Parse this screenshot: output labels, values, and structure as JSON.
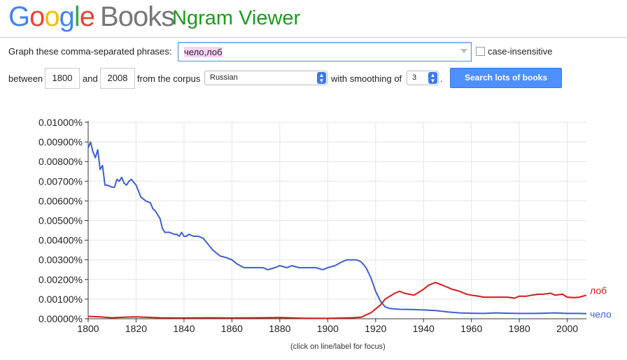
{
  "header": {
    "logo_letters": [
      "G",
      "o",
      "o",
      "g",
      "l",
      "e"
    ],
    "logo_books": "Books",
    "title": "Ngram Viewer"
  },
  "form": {
    "phrases_label": "Graph these comma-separated phrases:",
    "phrases_value": "чело,лоб",
    "case_label": "case-insensitive",
    "between_label": "between",
    "start_year": "1800",
    "and_label": "and",
    "end_year": "2008",
    "corpus_label": "from the corpus",
    "corpus_value": "Russian",
    "smoothing_label": "with smoothing of",
    "smoothing_value": "3",
    "period": ".",
    "search_button": "Search lots of books"
  },
  "footnote": "(click on line/label for focus)",
  "colors": {
    "chelo": "#3b5fd6",
    "lob": "#d61a1a"
  },
  "chart_data": {
    "type": "line",
    "x_ticks": [
      1800,
      1820,
      1840,
      1860,
      1880,
      1900,
      1920,
      1940,
      1960,
      1980,
      2000
    ],
    "y_ticks": [
      "0.00000%",
      "0.00100%",
      "0.00200%",
      "0.00300%",
      "0.00400%",
      "0.00500%",
      "0.00600%",
      "0.00700%",
      "0.00800%",
      "0.00900%",
      "0.01000%"
    ],
    "xlim": [
      1800,
      2008
    ],
    "ylim": [
      0,
      0.01
    ],
    "grid": true,
    "series": [
      {
        "name": "чело",
        "x": [
          1800,
          1801,
          1802,
          1803,
          1804,
          1805,
          1806,
          1807,
          1808,
          1810,
          1811,
          1812,
          1813,
          1814,
          1815,
          1816,
          1817,
          1818,
          1820,
          1822,
          1824,
          1826,
          1827,
          1828,
          1830,
          1831,
          1832,
          1834,
          1836,
          1837,
          1838,
          1839,
          1840,
          1841,
          1842,
          1844,
          1846,
          1848,
          1850,
          1852,
          1855,
          1858,
          1860,
          1862,
          1865,
          1868,
          1870,
          1873,
          1875,
          1878,
          1880,
          1883,
          1885,
          1888,
          1890,
          1893,
          1895,
          1898,
          1900,
          1903,
          1906,
          1908,
          1910,
          1912,
          1914,
          1916,
          1918,
          1920,
          1922,
          1924,
          1926,
          1928,
          1930,
          1935,
          1940,
          1945,
          1950,
          1955,
          1960,
          1965,
          1970,
          1975,
          1980,
          1985,
          1990,
          1995,
          2000,
          2005,
          2008
        ],
        "values": [
          0.0087,
          0.009,
          0.0085,
          0.0082,
          0.0086,
          0.0076,
          0.0078,
          0.0068,
          0.0068,
          0.0067,
          0.0067,
          0.0071,
          0.007,
          0.0072,
          0.0069,
          0.0068,
          0.007,
          0.0071,
          0.0068,
          0.0062,
          0.006,
          0.0059,
          0.0056,
          0.0055,
          0.0051,
          0.0046,
          0.0044,
          0.0044,
          0.0043,
          0.0043,
          0.0042,
          0.0044,
          0.0042,
          0.0042,
          0.0043,
          0.0042,
          0.0042,
          0.0041,
          0.0038,
          0.0035,
          0.0032,
          0.0031,
          0.003,
          0.0028,
          0.0026,
          0.0026,
          0.0026,
          0.0026,
          0.0025,
          0.0026,
          0.0027,
          0.0026,
          0.0027,
          0.0026,
          0.0026,
          0.0026,
          0.0026,
          0.0025,
          0.0026,
          0.0027,
          0.0029,
          0.003,
          0.003,
          0.003,
          0.0029,
          0.0026,
          0.0021,
          0.0014,
          0.0009,
          0.0006,
          0.00052,
          0.0005,
          0.00048,
          0.00047,
          0.00045,
          0.00042,
          0.00035,
          0.0003,
          0.00028,
          0.00027,
          0.0003,
          0.00028,
          0.00027,
          0.00027,
          0.00028,
          0.0003,
          0.00027,
          0.00027,
          0.00026
        ]
      },
      {
        "name": "лоб",
        "x": [
          1800,
          1805,
          1810,
          1815,
          1820,
          1830,
          1840,
          1850,
          1860,
          1870,
          1880,
          1890,
          1900,
          1910,
          1914,
          1916,
          1918,
          1920,
          1922,
          1924,
          1926,
          1928,
          1930,
          1932,
          1934,
          1936,
          1938,
          1940,
          1942,
          1944,
          1945,
          1946,
          1948,
          1950,
          1952,
          1955,
          1958,
          1960,
          1963,
          1965,
          1968,
          1970,
          1973,
          1975,
          1978,
          1980,
          1983,
          1985,
          1988,
          1990,
          1993,
          1995,
          1998,
          2000,
          2003,
          2005,
          2008
        ],
        "values": [
          0.00012,
          0.0001,
          5e-05,
          8e-05,
          0.0001,
          5e-05,
          4e-05,
          5e-05,
          4e-05,
          5e-05,
          6e-05,
          3e-05,
          2e-05,
          5e-05,
          8e-05,
          0.0002,
          0.0003,
          0.0005,
          0.0007,
          0.001,
          0.00115,
          0.0013,
          0.0014,
          0.0013,
          0.00125,
          0.0012,
          0.00135,
          0.0015,
          0.0017,
          0.0018,
          0.00185,
          0.0018,
          0.0017,
          0.0016,
          0.0015,
          0.0014,
          0.00125,
          0.0012,
          0.00115,
          0.0011,
          0.0011,
          0.0011,
          0.0011,
          0.0011,
          0.00105,
          0.00115,
          0.00115,
          0.0012,
          0.00125,
          0.00125,
          0.0013,
          0.0012,
          0.00125,
          0.0011,
          0.00108,
          0.0011,
          0.0012
        ]
      }
    ]
  }
}
